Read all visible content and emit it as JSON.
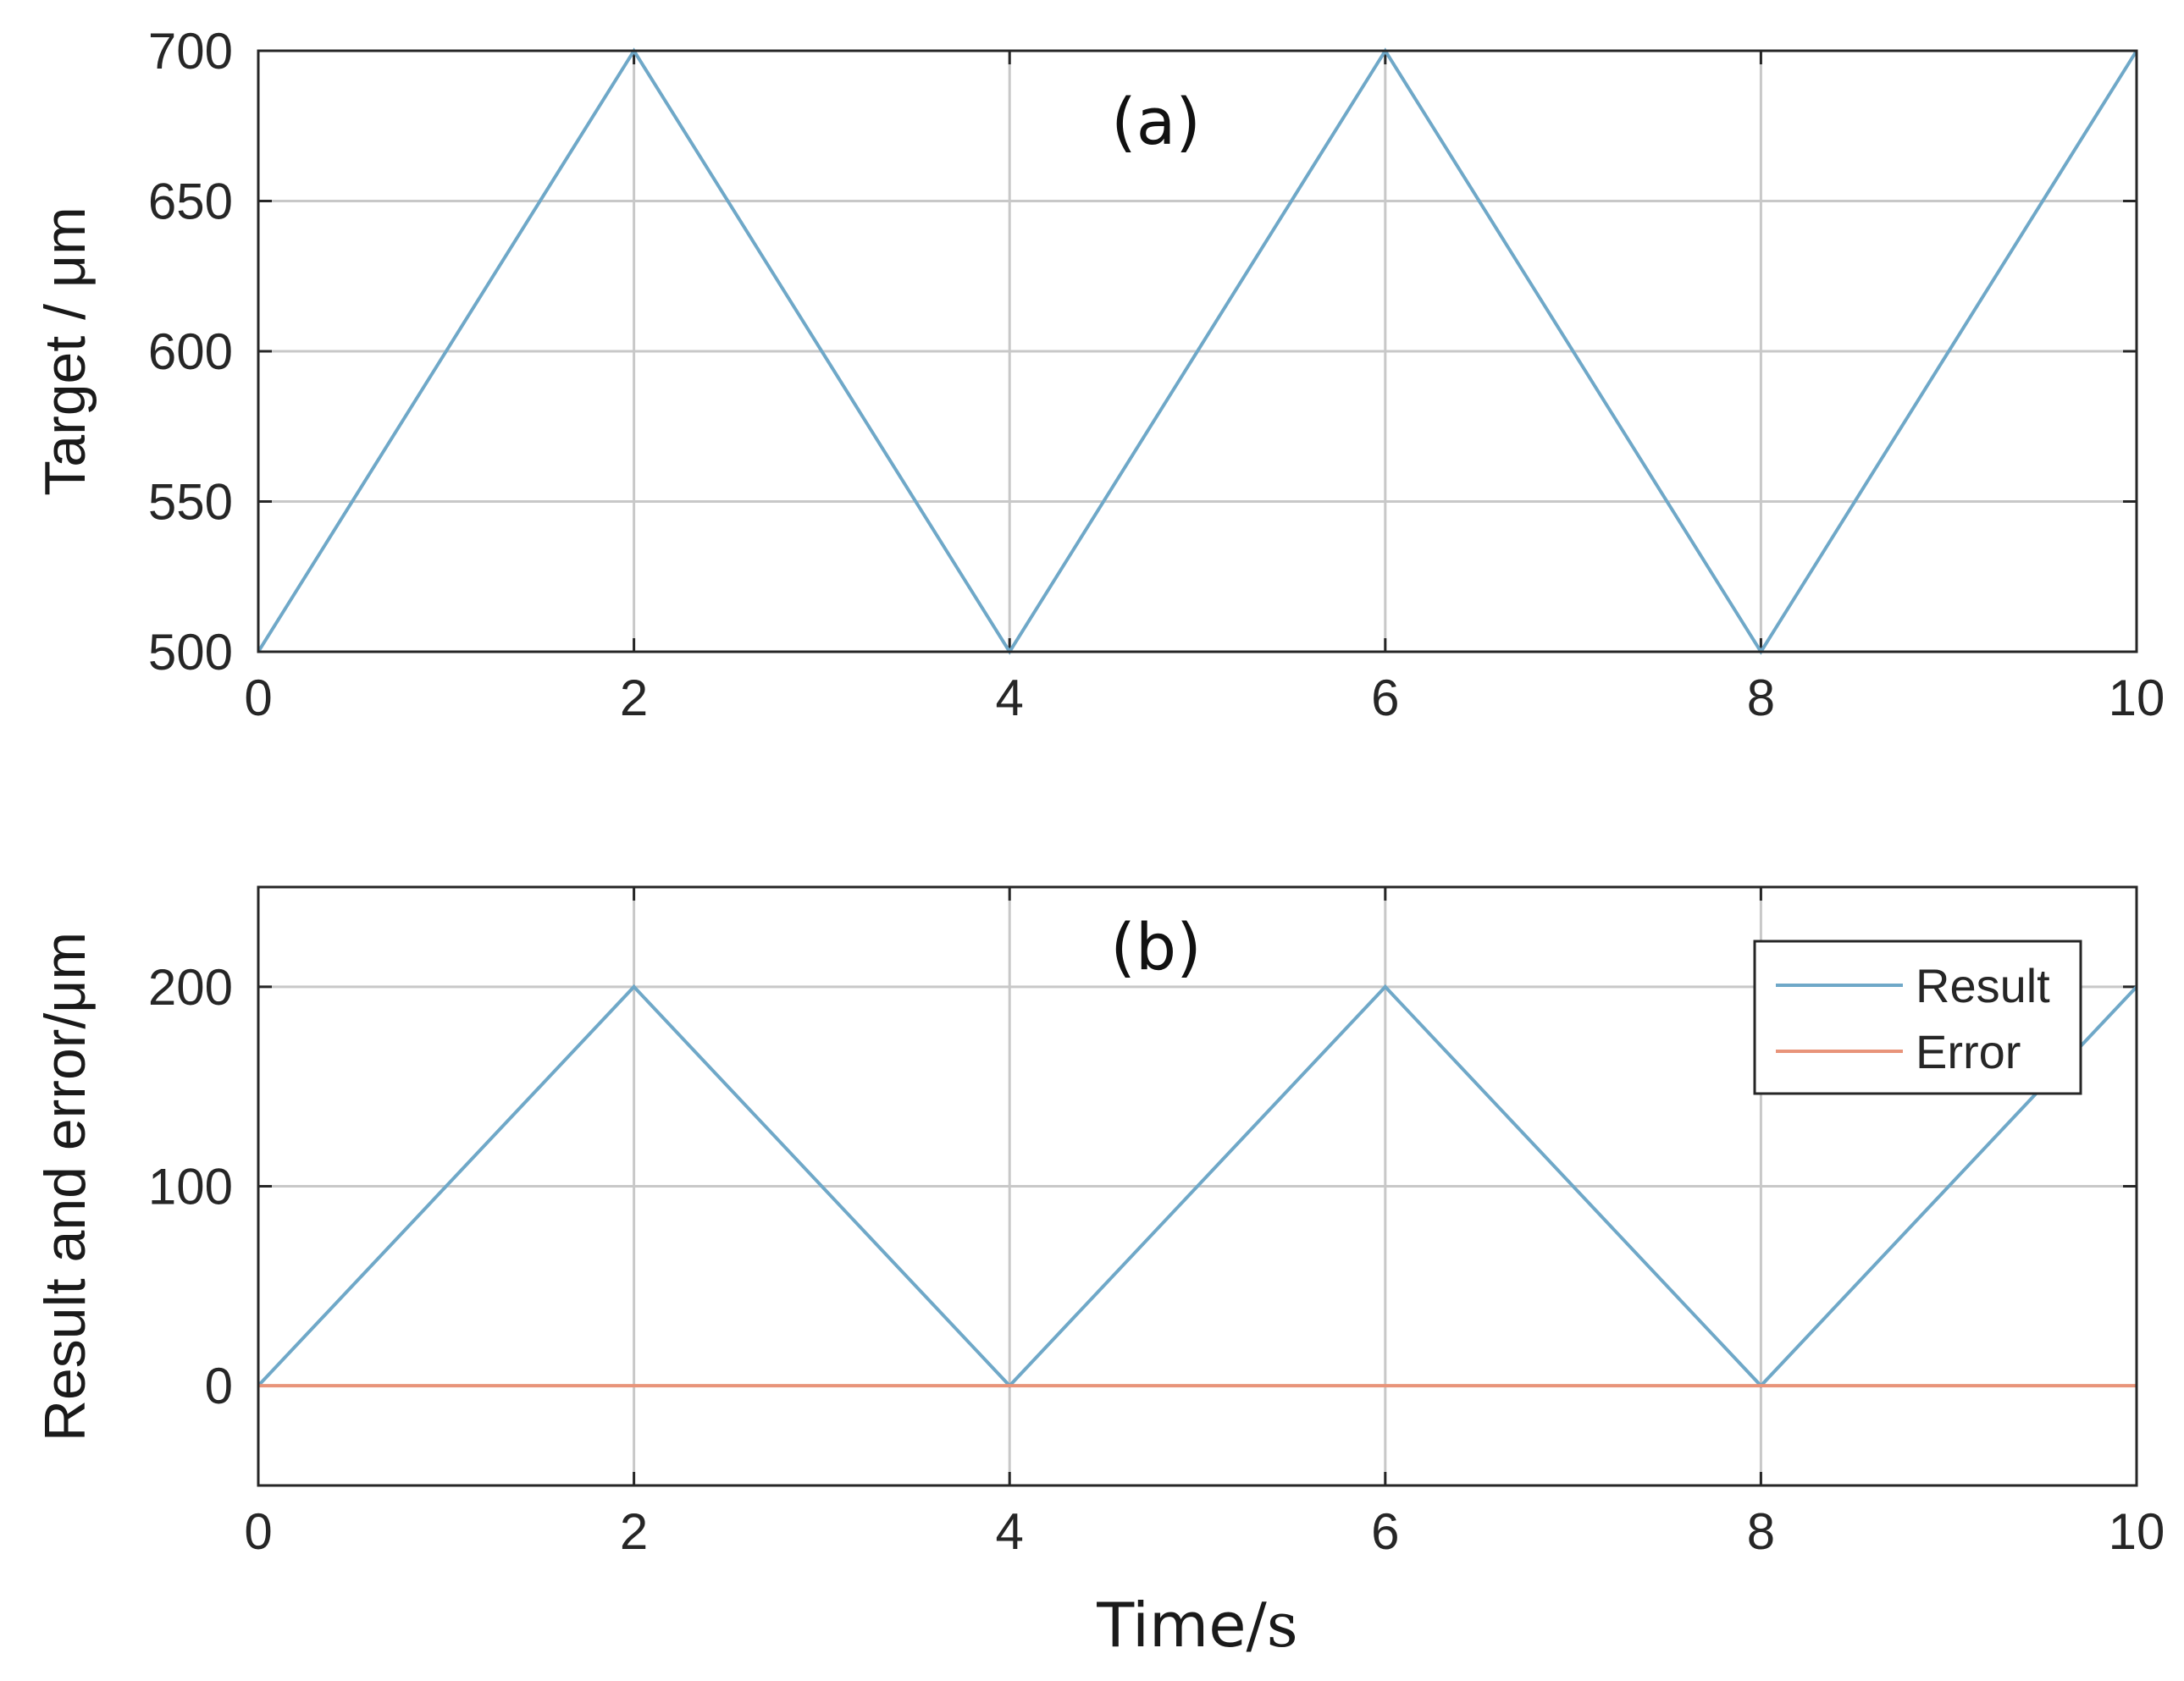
{
  "chart_data": [
    {
      "type": "line",
      "panel_label": "(a)",
      "ylabel": "Target / μm",
      "xlabel": "",
      "xlim": [
        0,
        10
      ],
      "ylim": [
        500,
        700
      ],
      "xticks": [
        0,
        2,
        4,
        6,
        8,
        10
      ],
      "yticks": [
        500,
        550,
        600,
        650,
        700
      ],
      "grid": true,
      "series": [
        {
          "color": "#6fa8c8",
          "x": [
            0,
            2,
            4,
            6,
            8,
            10
          ],
          "y": [
            500,
            700,
            500,
            700,
            500,
            700
          ]
        }
      ]
    },
    {
      "type": "line",
      "panel_label": "(b)",
      "ylabel": "Result and error/μm",
      "xlabel": "Time/s",
      "xlabel_parts": [
        "Time",
        "/s"
      ],
      "xlim": [
        0,
        10
      ],
      "ylim": [
        -50,
        250
      ],
      "xticks": [
        0,
        2,
        4,
        6,
        8,
        10
      ],
      "yticks": [
        0,
        100,
        200
      ],
      "grid": true,
      "legend_position": "top-right",
      "series": [
        {
          "name": "Result",
          "color": "#6fa8c8",
          "x": [
            0,
            2,
            4,
            6,
            8,
            10
          ],
          "y": [
            0,
            200,
            0,
            200,
            0,
            200
          ]
        },
        {
          "name": "Error",
          "color": "#e8947a",
          "x": [
            0,
            10
          ],
          "y": [
            0,
            0
          ]
        }
      ]
    }
  ]
}
